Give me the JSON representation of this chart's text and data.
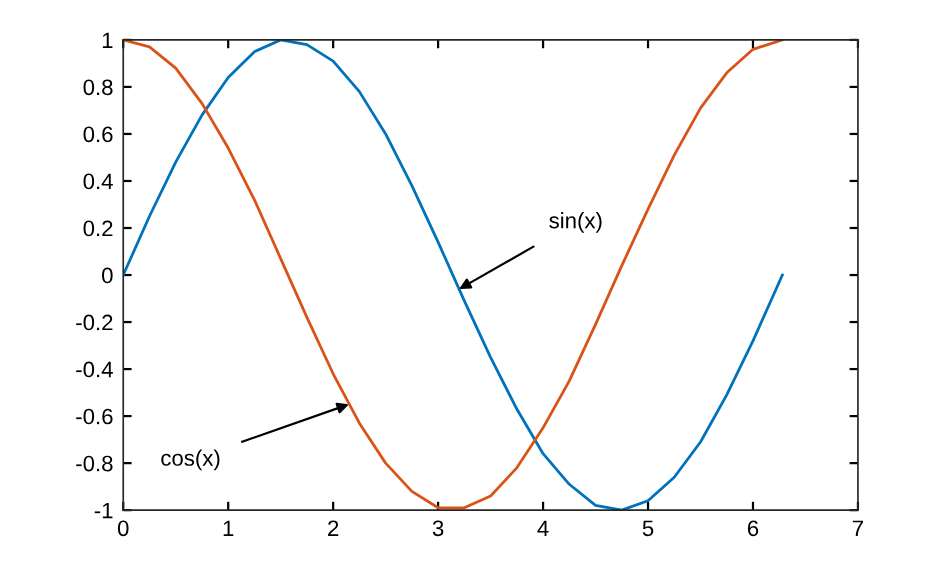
{
  "chart_data": {
    "type": "line",
    "x": [
      0,
      0.25,
      0.5,
      0.75,
      1,
      1.25,
      1.5,
      1.75,
      2,
      2.25,
      2.5,
      2.75,
      3,
      3.25,
      3.5,
      3.75,
      4,
      4.25,
      4.5,
      4.75,
      5,
      5.25,
      5.5,
      5.75,
      6,
      6.28
    ],
    "series": [
      {
        "color": "#0072bd",
        "values": [
          0,
          0.25,
          0.48,
          0.68,
          0.84,
          0.95,
          1,
          0.98,
          0.91,
          0.78,
          0.6,
          0.38,
          0.14,
          -0.11,
          -0.35,
          -0.57,
          -0.76,
          -0.89,
          -0.98,
          -1,
          -0.96,
          -0.86,
          -0.71,
          -0.51,
          -0.28,
          0
        ]
      },
      {
        "color": "#d95319",
        "values": [
          1,
          0.97,
          0.88,
          0.73,
          0.54,
          0.32,
          0.07,
          -0.18,
          -0.42,
          -0.63,
          -0.8,
          -0.92,
          -0.99,
          -0.99,
          -0.94,
          -0.82,
          -0.65,
          -0.45,
          -0.21,
          0.04,
          0.28,
          0.51,
          0.71,
          0.86,
          0.96,
          1
        ]
      }
    ],
    "xlim": [
      0,
      7
    ],
    "xticks": [
      0,
      1,
      2,
      3,
      4,
      5,
      6,
      7
    ],
    "ylim": [
      -1,
      1
    ],
    "yticks": [
      -1,
      -0.8,
      -0.6,
      -0.4,
      -0.2,
      0,
      0.2,
      0.4,
      0.6,
      0.8,
      1
    ],
    "annotations": [
      {
        "text": "sin(x)",
        "x": 3.2,
        "y": -0.06
      },
      {
        "text": "cos(x)",
        "x": 2.15,
        "y": -0.55
      }
    ],
    "grid": false,
    "legend": false,
    "marker": "none",
    "line_style": "solid"
  }
}
